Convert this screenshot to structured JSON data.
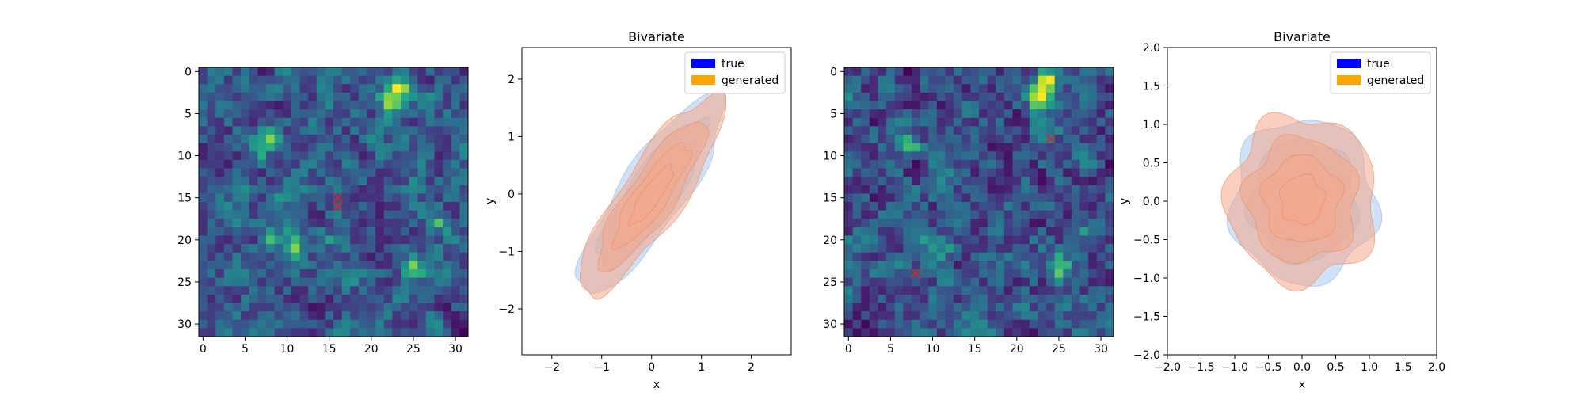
{
  "figure": {
    "background": "#ffffff"
  },
  "chart_data": [
    {
      "type": "heatmap",
      "id": "heatmap-1",
      "title": "",
      "grid_size": 32,
      "colormap": "viridis",
      "seed": 7,
      "hotspots": [
        [
          2,
          23,
          1.0
        ],
        [
          2,
          24,
          0.9
        ],
        [
          4,
          22,
          0.8
        ],
        [
          4,
          23,
          0.85
        ],
        [
          9,
          7,
          0.9
        ],
        [
          8,
          8,
          0.7
        ],
        [
          14,
          10,
          0.7
        ],
        [
          13,
          11,
          0.6
        ],
        [
          20,
          8,
          0.8
        ],
        [
          20,
          11,
          0.85
        ],
        [
          21,
          11,
          0.8
        ],
        [
          18,
          28,
          0.7
        ],
        [
          23,
          25,
          0.75
        ],
        [
          24,
          25,
          0.7
        ],
        [
          20,
          15,
          0.5
        ]
      ],
      "xticks": [
        0,
        5,
        10,
        15,
        20,
        25,
        30
      ],
      "yticks": [
        0,
        5,
        10,
        15,
        20,
        25,
        30
      ],
      "markers": [
        {
          "x": 16,
          "y": 15
        },
        {
          "x": 16,
          "y": 16
        }
      ],
      "marker_color": "#d62728"
    },
    {
      "type": "density",
      "id": "bivariate-1",
      "title": "Bivariate",
      "xlabel": "x",
      "ylabel": "y",
      "xlim": [
        -2.6,
        2.8
      ],
      "ylim": [
        -2.8,
        2.55
      ],
      "xticks": [
        -2,
        -1,
        0,
        1,
        2
      ],
      "yticks": [
        -2,
        -1,
        0,
        1,
        2
      ],
      "legend": {
        "position": "top-right",
        "entries": [
          {
            "label": "true",
            "color": "#0000ff"
          },
          {
            "label": "generated",
            "color": "#ffa500"
          }
        ]
      },
      "series": [
        {
          "name": "true",
          "fill": "#a7c8ef",
          "stroke": "#8fb6e6",
          "center": [
            0,
            0
          ],
          "sx": 0.75,
          "sy": 0.9,
          "rho": 0.85,
          "levels": [
            0.15,
            0.35,
            0.6,
            0.85
          ],
          "wobble": 0.06,
          "phase": 0.7
        },
        {
          "name": "generated",
          "fill": "#f5a88a",
          "stroke": "#e88a55",
          "center": [
            0,
            -0.02
          ],
          "sx": 0.75,
          "sy": 0.9,
          "rho": 0.86,
          "levels": [
            0.15,
            0.35,
            0.6,
            0.85
          ],
          "wobble": 0.07,
          "phase": 2.1
        }
      ]
    },
    {
      "type": "heatmap",
      "id": "heatmap-2",
      "title": "",
      "grid_size": 32,
      "colormap": "viridis",
      "seed": 19,
      "hotspots": [
        [
          1,
          23,
          1.0
        ],
        [
          1,
          24,
          0.9
        ],
        [
          3,
          22,
          0.85
        ],
        [
          3,
          23,
          0.8
        ],
        [
          9,
          7,
          0.95
        ],
        [
          8,
          7,
          0.7
        ],
        [
          13,
          11,
          0.6
        ],
        [
          20,
          9,
          0.8
        ],
        [
          21,
          11,
          0.7
        ],
        [
          23,
          25,
          0.85
        ],
        [
          24,
          25,
          0.8
        ],
        [
          19,
          28,
          0.6
        ]
      ],
      "xticks": [
        0,
        5,
        10,
        15,
        20,
        25,
        30
      ],
      "yticks": [
        0,
        5,
        10,
        15,
        20,
        25,
        30
      ],
      "markers": [
        {
          "x": 24,
          "y": 8
        },
        {
          "x": 8,
          "y": 24
        }
      ],
      "marker_color": "#d62728"
    },
    {
      "type": "density",
      "id": "bivariate-2",
      "title": "Bivariate",
      "xlabel": "x",
      "ylabel": "y",
      "xlim": [
        -2.0,
        2.0
      ],
      "ylim": [
        -2.0,
        2.0
      ],
      "xticks": [
        -2.0,
        -1.5,
        -1.0,
        -0.5,
        0.0,
        0.5,
        1.0,
        1.5,
        2.0
      ],
      "yticks": [
        -2.0,
        -1.5,
        -1.0,
        -0.5,
        0.0,
        0.5,
        1.0,
        1.5,
        2.0
      ],
      "tick_format": "fixed1",
      "legend": {
        "position": "top-right",
        "entries": [
          {
            "label": "true",
            "color": "#0000ff"
          },
          {
            "label": "generated",
            "color": "#ffa500"
          }
        ]
      },
      "series": [
        {
          "name": "true",
          "fill": "#a7c8ef",
          "stroke": "#8fb6e6",
          "center": [
            0.02,
            0.0
          ],
          "sx": 0.55,
          "sy": 0.55,
          "rho": 0.0,
          "levels": [
            0.15,
            0.35,
            0.6,
            0.85
          ],
          "wobble": 0.07,
          "phase": 0.4
        },
        {
          "name": "generated",
          "fill": "#f5a88a",
          "stroke": "#e88a55",
          "center": [
            0.0,
            0.02
          ],
          "sx": 0.57,
          "sy": 0.56,
          "rho": 0.0,
          "levels": [
            0.15,
            0.35,
            0.6,
            0.85
          ],
          "wobble": 0.08,
          "phase": 1.9
        }
      ]
    }
  ]
}
